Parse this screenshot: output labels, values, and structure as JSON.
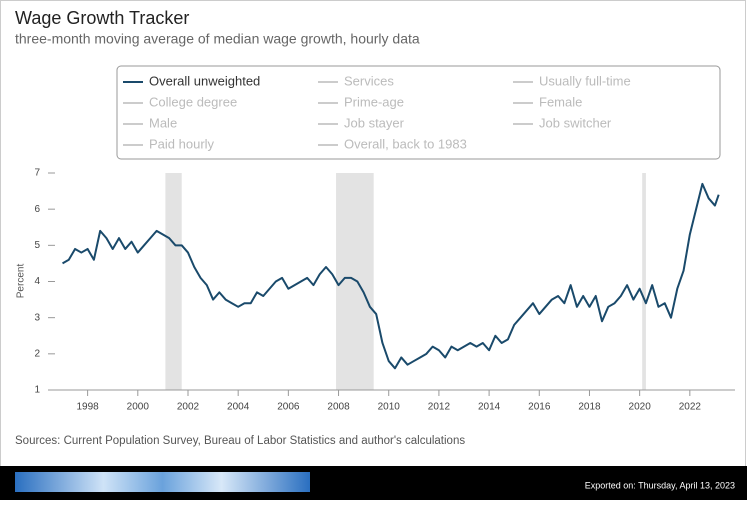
{
  "chart_data": {
    "type": "line",
    "title": "Wage Growth Tracker",
    "subtitle": "three-month moving average of median wage growth, hourly data",
    "ylabel": "Percent",
    "source": "Sources: Current Population Survey, Bureau of Labor Statistics and author's calculations",
    "export_note": "Exported on: Thursday, April 13, 2023",
    "xlim": [
      1996.7,
      2023.8
    ],
    "xticks": [
      1998,
      2000,
      2002,
      2004,
      2006,
      2008,
      2010,
      2012,
      2014,
      2016,
      2018,
      2020,
      2022
    ],
    "ylim": [
      1,
      7
    ],
    "yticks": [
      1,
      2,
      3,
      4,
      5,
      6,
      7
    ],
    "recessions": [
      [
        2001.1,
        2001.75
      ],
      [
        2007.9,
        2009.4
      ],
      [
        2020.1,
        2020.25
      ]
    ],
    "recession_color": "#e3e3e3",
    "legend_inactive": [
      "Services",
      "Usually full-time",
      "College degree",
      "Prime-age",
      "Female",
      "Male",
      "Job stayer",
      "Job switcher",
      "Paid hourly",
      "Overall, back to 1983"
    ],
    "inactive_color": "#cccccc",
    "x": [
      1997,
      1997.25,
      1997.5,
      1997.75,
      1998,
      1998.25,
      1998.5,
      1998.75,
      1999,
      1999.25,
      1999.5,
      1999.75,
      2000,
      2000.25,
      2000.5,
      2000.75,
      2001,
      2001.25,
      2001.5,
      2001.75,
      2002,
      2002.25,
      2002.5,
      2002.75,
      2003,
      2003.25,
      2003.5,
      2003.75,
      2004,
      2004.25,
      2004.5,
      2004.75,
      2005,
      2005.25,
      2005.5,
      2005.75,
      2006,
      2006.25,
      2006.5,
      2006.75,
      2007,
      2007.25,
      2007.5,
      2007.75,
      2008,
      2008.25,
      2008.5,
      2008.75,
      2009,
      2009.25,
      2009.5,
      2009.75,
      2010,
      2010.25,
      2010.5,
      2010.75,
      2011,
      2011.25,
      2011.5,
      2011.75,
      2012,
      2012.25,
      2012.5,
      2012.75,
      2013,
      2013.25,
      2013.5,
      2013.75,
      2014,
      2014.25,
      2014.5,
      2014.75,
      2015,
      2015.25,
      2015.5,
      2015.75,
      2016,
      2016.25,
      2016.5,
      2016.75,
      2017,
      2017.25,
      2017.5,
      2017.75,
      2018,
      2018.25,
      2018.5,
      2018.75,
      2019,
      2019.25,
      2019.5,
      2019.75,
      2020,
      2020.25,
      2020.5,
      2020.75,
      2021,
      2021.25,
      2021.5,
      2021.75,
      2022,
      2022.25,
      2022.5,
      2022.75,
      2023,
      2023.15
    ],
    "series": [
      {
        "name": "Overall unweighted",
        "color": "#1a4a6b",
        "values": [
          4.5,
          4.6,
          4.9,
          4.8,
          4.9,
          4.6,
          5.4,
          5.2,
          4.9,
          5.2,
          4.9,
          5.1,
          4.8,
          5.0,
          5.2,
          5.4,
          5.3,
          5.2,
          5.0,
          5.0,
          4.8,
          4.4,
          4.1,
          3.9,
          3.5,
          3.7,
          3.5,
          3.4,
          3.3,
          3.4,
          3.4,
          3.7,
          3.6,
          3.8,
          4.0,
          4.1,
          3.8,
          3.9,
          4.0,
          4.1,
          3.9,
          4.2,
          4.4,
          4.2,
          3.9,
          4.1,
          4.1,
          4.0,
          3.7,
          3.3,
          3.1,
          2.3,
          1.8,
          1.6,
          1.9,
          1.7,
          1.8,
          1.9,
          2.0,
          2.2,
          2.1,
          1.9,
          2.2,
          2.1,
          2.2,
          2.3,
          2.2,
          2.3,
          2.1,
          2.5,
          2.3,
          2.4,
          2.8,
          3.0,
          3.2,
          3.4,
          3.1,
          3.3,
          3.5,
          3.6,
          3.4,
          3.9,
          3.3,
          3.6,
          3.3,
          3.6,
          2.9,
          3.3,
          3.4,
          3.6,
          3.9,
          3.5,
          3.8,
          3.4,
          3.9,
          3.3,
          3.4,
          3.0,
          3.8,
          4.3,
          5.3,
          6.0,
          6.7,
          6.3,
          6.1,
          6.4
        ]
      }
    ]
  }
}
